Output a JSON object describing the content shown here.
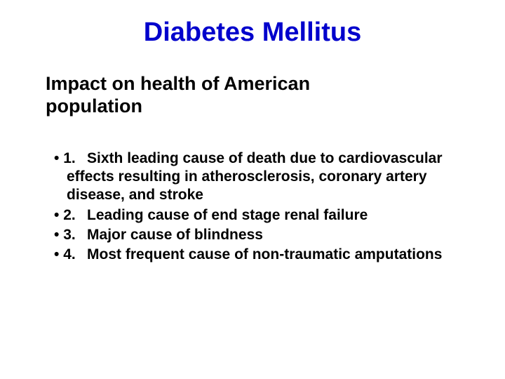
{
  "title": {
    "text": "Diabetes Mellitus",
    "color": "#0000cc",
    "fontsize": 38
  },
  "subtitle": {
    "text_line1": " Impact on health of American",
    "text_line2": "population",
    "color": "#000000",
    "fontsize": 27
  },
  "body": {
    "color": "#000000",
    "fontsize": 21,
    "items": [
      {
        "num": "1.",
        "text": "Sixth leading cause of death due to cardiovascular effects resulting in atherosclerosis, coronary artery disease, and stroke"
      },
      {
        "num": "2.",
        "text": "Leading cause of end stage renal failure"
      },
      {
        "num": "3.",
        "text": "Major cause of blindness"
      },
      {
        "num": "4.",
        "text": "Most frequent cause of non-traumatic amputations"
      }
    ]
  },
  "background_color": "#ffffff"
}
